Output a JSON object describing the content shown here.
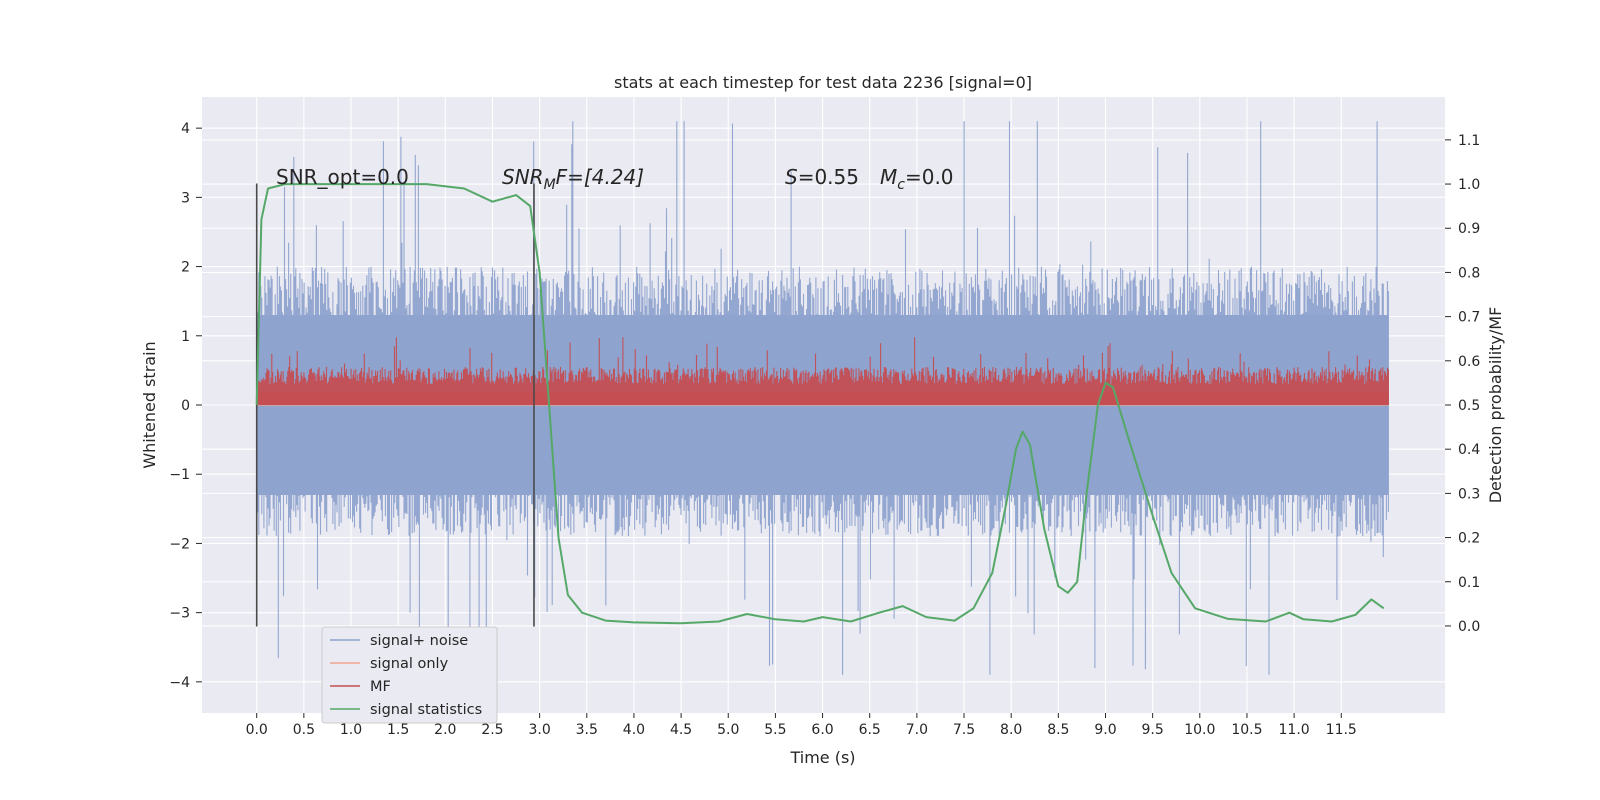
{
  "chart_data": {
    "type": "line",
    "title": "stats at each timestep for test data 2236 [signal=0]",
    "xlabel": "Time (s)",
    "ylabel": "Whitened strain",
    "y2label": "Detection probability/MF",
    "xlim": [
      -0.58,
      12.6
    ],
    "ylim": [
      -4.45,
      4.45
    ],
    "y2lim": [
      -0.197,
      1.197
    ],
    "x_ticks": [
      "0.0",
      "0.5",
      "1.0",
      "1.5",
      "2.0",
      "2.5",
      "3.0",
      "3.5",
      "4.0",
      "4.5",
      "5.0",
      "5.5",
      "6.0",
      "6.5",
      "7.0",
      "7.5",
      "8.0",
      "8.5",
      "9.0",
      "9.5",
      "10.0",
      "10.5",
      "11.0",
      "11.5"
    ],
    "y_ticks": [
      "4",
      "3",
      "2",
      "1",
      "0",
      "−1",
      "−2",
      "−3",
      "−4"
    ],
    "y2_ticks": [
      "1.1",
      "1.0",
      "0.9",
      "0.8",
      "0.7",
      "0.6",
      "0.5",
      "0.4",
      "0.3",
      "0.2",
      "0.1",
      "0.0"
    ],
    "grid": true,
    "legend_position": "lower-left",
    "annotations": {
      "snr_opt": "SNR_opt=0.0",
      "snr_mf_prefix": "SNR",
      "snr_mf_sub": "M",
      "snr_mf_rest": "F=[4.24]",
      "s_label": "S",
      "s_value": "=0.55",
      "mc_label": "M",
      "mc_sub": "c",
      "mc_value": "=0.0"
    },
    "vertical_markers": [
      {
        "x": 0.0,
        "y_range": [
          -3.2,
          3.2
        ]
      },
      {
        "x": 2.94,
        "y_range": [
          -3.2,
          3.2
        ]
      }
    ],
    "series": [
      {
        "name": "signal+ noise",
        "color": "#8ea3ce",
        "style": "noise-band",
        "x_range": [
          0.0,
          12.0
        ],
        "typical_range": [
          -1.9,
          2.0
        ],
        "extremes": [
          -3.9,
          4.1
        ]
      },
      {
        "name": "signal only",
        "color": "#eea58f",
        "style": "flat",
        "values": [
          [
            0.0,
            0.0
          ],
          [
            12.0,
            0.0
          ]
        ]
      },
      {
        "name": "MF",
        "color": "#c44e52",
        "style": "noise-band",
        "x_range": [
          0.0,
          12.0
        ],
        "typical_range": [
          0.0,
          0.55
        ],
        "extremes": [
          0.0,
          0.98
        ]
      },
      {
        "name": "signal statistics",
        "color": "#55a868",
        "style": "line",
        "points": [
          [
            0.0,
            0.5
          ],
          [
            0.05,
            0.92
          ],
          [
            0.12,
            0.99
          ],
          [
            0.3,
            1.0
          ],
          [
            1.0,
            1.0
          ],
          [
            1.8,
            1.0
          ],
          [
            2.2,
            0.99
          ],
          [
            2.5,
            0.96
          ],
          [
            2.75,
            0.975
          ],
          [
            2.9,
            0.95
          ],
          [
            3.0,
            0.8
          ],
          [
            3.1,
            0.5
          ],
          [
            3.2,
            0.2
          ],
          [
            3.3,
            0.07
          ],
          [
            3.45,
            0.03
          ],
          [
            3.7,
            0.012
          ],
          [
            4.0,
            0.008
          ],
          [
            4.5,
            0.006
          ],
          [
            4.9,
            0.01
          ],
          [
            5.2,
            0.027
          ],
          [
            5.5,
            0.015
          ],
          [
            5.8,
            0.01
          ],
          [
            6.0,
            0.02
          ],
          [
            6.3,
            0.01
          ],
          [
            6.6,
            0.03
          ],
          [
            6.85,
            0.045
          ],
          [
            7.1,
            0.02
          ],
          [
            7.4,
            0.012
          ],
          [
            7.6,
            0.04
          ],
          [
            7.8,
            0.12
          ],
          [
            7.95,
            0.28
          ],
          [
            8.05,
            0.4
          ],
          [
            8.12,
            0.44
          ],
          [
            8.2,
            0.41
          ],
          [
            8.35,
            0.22
          ],
          [
            8.5,
            0.09
          ],
          [
            8.6,
            0.075
          ],
          [
            8.7,
            0.1
          ],
          [
            8.8,
            0.3
          ],
          [
            8.92,
            0.5
          ],
          [
            9.0,
            0.55
          ],
          [
            9.08,
            0.54
          ],
          [
            9.25,
            0.42
          ],
          [
            9.5,
            0.25
          ],
          [
            9.7,
            0.12
          ],
          [
            9.95,
            0.04
          ],
          [
            10.3,
            0.016
          ],
          [
            10.7,
            0.01
          ],
          [
            10.95,
            0.03
          ],
          [
            11.1,
            0.015
          ],
          [
            11.4,
            0.01
          ],
          [
            11.65,
            0.025
          ],
          [
            11.82,
            0.06
          ],
          [
            11.95,
            0.04
          ]
        ]
      }
    ]
  }
}
